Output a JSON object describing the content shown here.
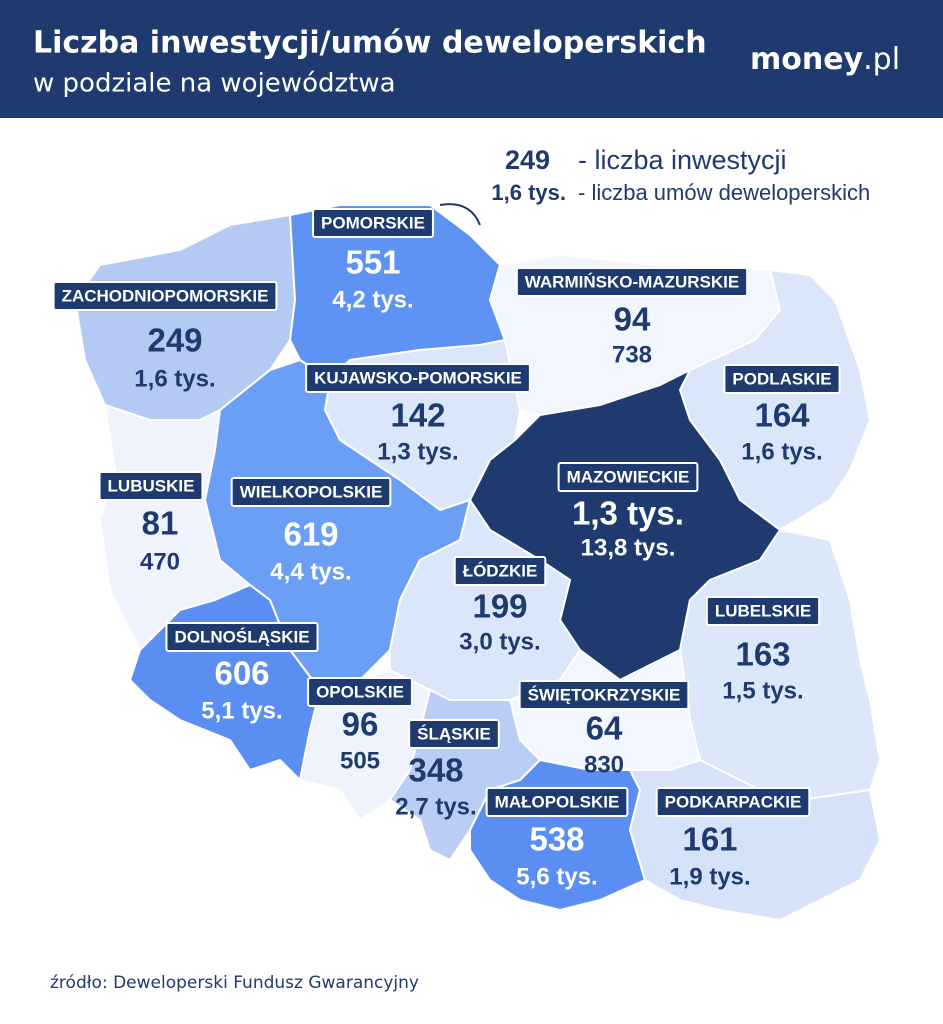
{
  "header": {
    "title": "Liczba inwestycji/umów deweloperskich",
    "subtitle": "w podziale na województwa",
    "logo_main": "money",
    "logo_suffix": ".pl"
  },
  "legend": {
    "investments": "249",
    "investments_label": "- liczba inwestycji",
    "contracts": "1,6 tys.",
    "contracts_label": "- liczba umów deweloperskich"
  },
  "regions": [
    {
      "name": "ZACHODNIOPOMORSKIE",
      "investments": "249",
      "contracts": "1,6 tys.",
      "color": "#b4c9f3"
    },
    {
      "name": "POMORSKIE",
      "investments": "551",
      "contracts": "4,2 tys.",
      "color": "#5e93f3"
    },
    {
      "name": "WARMIŃSKO-MAZURSKIE",
      "investments": "94",
      "contracts": "738",
      "color": "#f2f6fe"
    },
    {
      "name": "KUJAWSKO-POMORSKIE",
      "investments": "142",
      "contracts": "1,3 tys.",
      "color": "#dbe6fa"
    },
    {
      "name": "PODLASKIE",
      "investments": "164",
      "contracts": "1,6 tys.",
      "color": "#dbe6fa"
    },
    {
      "name": "MAZOWIECKIE",
      "investments": "1,3 tys.",
      "contracts": "13,8 tys.",
      "color": "#1f3a6e"
    },
    {
      "name": "LUBUSKIE",
      "investments": "81",
      "contracts": "470",
      "color": "#eef3fd"
    },
    {
      "name": "WIELKOPOLSKIE",
      "investments": "619",
      "contracts": "4,4 tys.",
      "color": "#6a9ff5"
    },
    {
      "name": "ŁÓDZKIE",
      "investments": "199",
      "contracts": "3,0 tys.",
      "color": "#dbe6fa"
    },
    {
      "name": "LUBELSKIE",
      "investments": "163",
      "contracts": "1,5 tys.",
      "color": "#dde7fa"
    },
    {
      "name": "DOLNOŚLĄSKIE",
      "investments": "606",
      "contracts": "5,1 tys.",
      "color": "#5b8ef2"
    },
    {
      "name": "OPOLSKIE",
      "investments": "96",
      "contracts": "505",
      "color": "#eef3fd"
    },
    {
      "name": "ŚWIĘTOKRZYSKIE",
      "investments": "64",
      "contracts": "830",
      "color": "#f2f6fe"
    },
    {
      "name": "ŚLĄSKIE",
      "investments": "348",
      "contracts": "2,7 tys.",
      "color": "#b9cdf5"
    },
    {
      "name": "MAŁOPOLSKIE",
      "investments": "538",
      "contracts": "5,6 tys.",
      "color": "#5b8ef2"
    },
    {
      "name": "PODKARPACKIE",
      "investments": "161",
      "contracts": "1,9 tys.",
      "color": "#d6e2f9"
    }
  ],
  "source": "źródło: Deweloperski Fundusz Gwarancyjny"
}
